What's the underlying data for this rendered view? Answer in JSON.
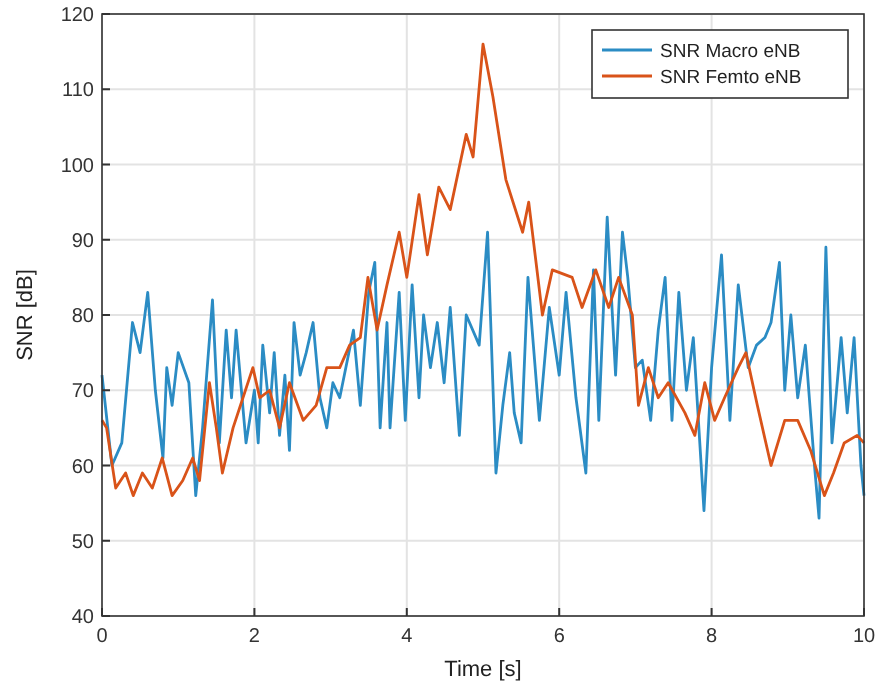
{
  "chart_data": {
    "type": "line",
    "xlabel": "Time [s]",
    "ylabel": "SNR [dB]",
    "xlim": [
      0,
      10
    ],
    "ylim": [
      40,
      120
    ],
    "xticks": [
      0,
      2,
      4,
      6,
      8,
      10
    ],
    "yticks": [
      40,
      50,
      60,
      70,
      80,
      90,
      100,
      110,
      120
    ],
    "grid": true,
    "legend": "top right",
    "line_style": "solid",
    "marker": "none",
    "series": [
      {
        "name": "SNR Macro eNB",
        "color": "#2b8cc4",
        "x": [
          0,
          0.13,
          0.26,
          0.4,
          0.5,
          0.6,
          0.7,
          0.8,
          0.85,
          0.92,
          1.0,
          1.14,
          1.23,
          1.32,
          1.45,
          1.54,
          1.63,
          1.7,
          1.76,
          1.89,
          2.0,
          2.05,
          2.11,
          2.2,
          2.26,
          2.33,
          2.4,
          2.46,
          2.52,
          2.6,
          2.68,
          2.77,
          2.86,
          2.95,
          3.03,
          3.12,
          3.3,
          3.39,
          3.5,
          3.58,
          3.65,
          3.74,
          3.78,
          3.9,
          3.98,
          4.07,
          4.16,
          4.22,
          4.31,
          4.4,
          4.49,
          4.57,
          4.69,
          4.78,
          4.95,
          5.06,
          5.17,
          5.26,
          5.35,
          5.41,
          5.5,
          5.59,
          5.74,
          5.87,
          6.0,
          6.09,
          6.22,
          6.35,
          6.45,
          6.52,
          6.63,
          6.74,
          6.83,
          6.9,
          7.0,
          7.09,
          7.2,
          7.3,
          7.39,
          7.48,
          7.57,
          7.67,
          7.76,
          7.9,
          8.0,
          8.13,
          8.24,
          8.35,
          8.48,
          8.59,
          8.7,
          8.78,
          8.89,
          8.96,
          9.04,
          9.13,
          9.23,
          9.35,
          9.41,
          9.5,
          9.58,
          9.7,
          9.78,
          9.87,
          9.96,
          10
        ],
        "values": [
          72,
          60,
          63,
          79,
          75,
          83,
          70,
          61,
          73,
          68,
          75,
          71,
          56,
          65,
          82,
          63,
          78,
          69,
          78,
          63,
          70,
          63,
          76,
          67,
          75,
          64,
          72,
          62,
          79,
          72,
          75,
          79,
          69,
          65,
          71,
          69,
          78,
          68,
          83,
          87,
          65,
          79,
          65,
          83,
          66,
          84,
          69,
          80,
          73,
          79,
          71,
          81,
          64,
          80,
          76,
          91,
          59,
          68,
          75,
          67,
          63,
          85,
          66,
          81,
          72,
          83,
          69,
          59,
          86,
          66,
          93,
          72,
          91,
          85,
          73,
          74,
          66,
          78,
          85,
          66,
          83,
          70,
          77,
          54,
          73,
          88,
          66,
          84,
          73,
          76,
          77,
          79,
          87,
          70,
          80,
          69,
          76,
          60,
          53,
          89,
          63,
          77,
          67,
          77,
          60,
          56
        ]
      },
      {
        "name": "SNR Femto eNB",
        "color": "#d95319",
        "x": [
          0,
          0.06,
          0.18,
          0.31,
          0.41,
          0.53,
          0.66,
          0.79,
          0.92,
          1.06,
          1.19,
          1.28,
          1.41,
          1.5,
          1.58,
          1.72,
          1.85,
          1.98,
          2.07,
          2.2,
          2.33,
          2.46,
          2.64,
          2.81,
          2.95,
          3.12,
          3.25,
          3.39,
          3.49,
          3.61,
          3.74,
          3.9,
          4.0,
          4.16,
          4.27,
          4.42,
          4.57,
          4.78,
          4.87,
          5.0,
          5.13,
          5.3,
          5.52,
          5.6,
          5.78,
          5.91,
          6.17,
          6.3,
          6.48,
          6.65,
          6.78,
          6.96,
          7.04,
          7.17,
          7.3,
          7.43,
          7.65,
          7.78,
          7.91,
          8.04,
          8.17,
          8.35,
          8.45,
          8.6,
          8.78,
          8.96,
          9.13,
          9.3,
          9.48,
          9.6,
          9.74,
          9.91,
          10
        ],
        "values": [
          66,
          65,
          57,
          59,
          56,
          59,
          57,
          61,
          56,
          58,
          61,
          58,
          71,
          65,
          59,
          65,
          69,
          73,
          69,
          70,
          65,
          71,
          66,
          68,
          73,
          73,
          76,
          77,
          85,
          78,
          84,
          91,
          85,
          96,
          88,
          97,
          94,
          104,
          101,
          116,
          109,
          98,
          91,
          95,
          80,
          86,
          85,
          81,
          86,
          81,
          85,
          80,
          68,
          73,
          69,
          71,
          67,
          64,
          71,
          66,
          69,
          73,
          75,
          68,
          60,
          66,
          66,
          62,
          56,
          59,
          63,
          64,
          63
        ]
      }
    ]
  }
}
